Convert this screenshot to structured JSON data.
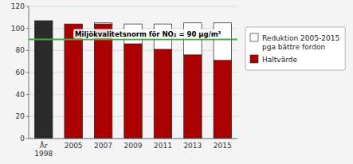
{
  "chart_data": {
    "type": "bar",
    "stacked": true,
    "categories": [
      "År\n1998",
      "2005",
      "2007",
      "2009",
      "2011",
      "2013",
      "2015"
    ],
    "series": [
      {
        "name": "Haltvärde",
        "color": "#aa0000",
        "colors": [
          "#2a2a2a",
          "#aa0000",
          "#aa0000",
          "#aa0000",
          "#aa0000",
          "#aa0000",
          "#aa0000"
        ],
        "values": [
          107,
          104,
          104,
          86,
          81,
          76,
          71
        ]
      },
      {
        "name": "Reduktion 2005-2015\npga bättre fordon",
        "color": "#ffffff",
        "values": [
          0,
          0,
          1,
          18,
          23,
          29,
          34
        ]
      }
    ],
    "ylim": [
      0,
      120
    ],
    "yticks": [
      0,
      20,
      40,
      60,
      80,
      100,
      120
    ],
    "grid": true,
    "legend": "right",
    "annotations": [
      {
        "text": "Miljökvalitetsnorm för NO₂ = 90 µg/m³",
        "y": 90,
        "color": "#44aa44"
      }
    ]
  }
}
